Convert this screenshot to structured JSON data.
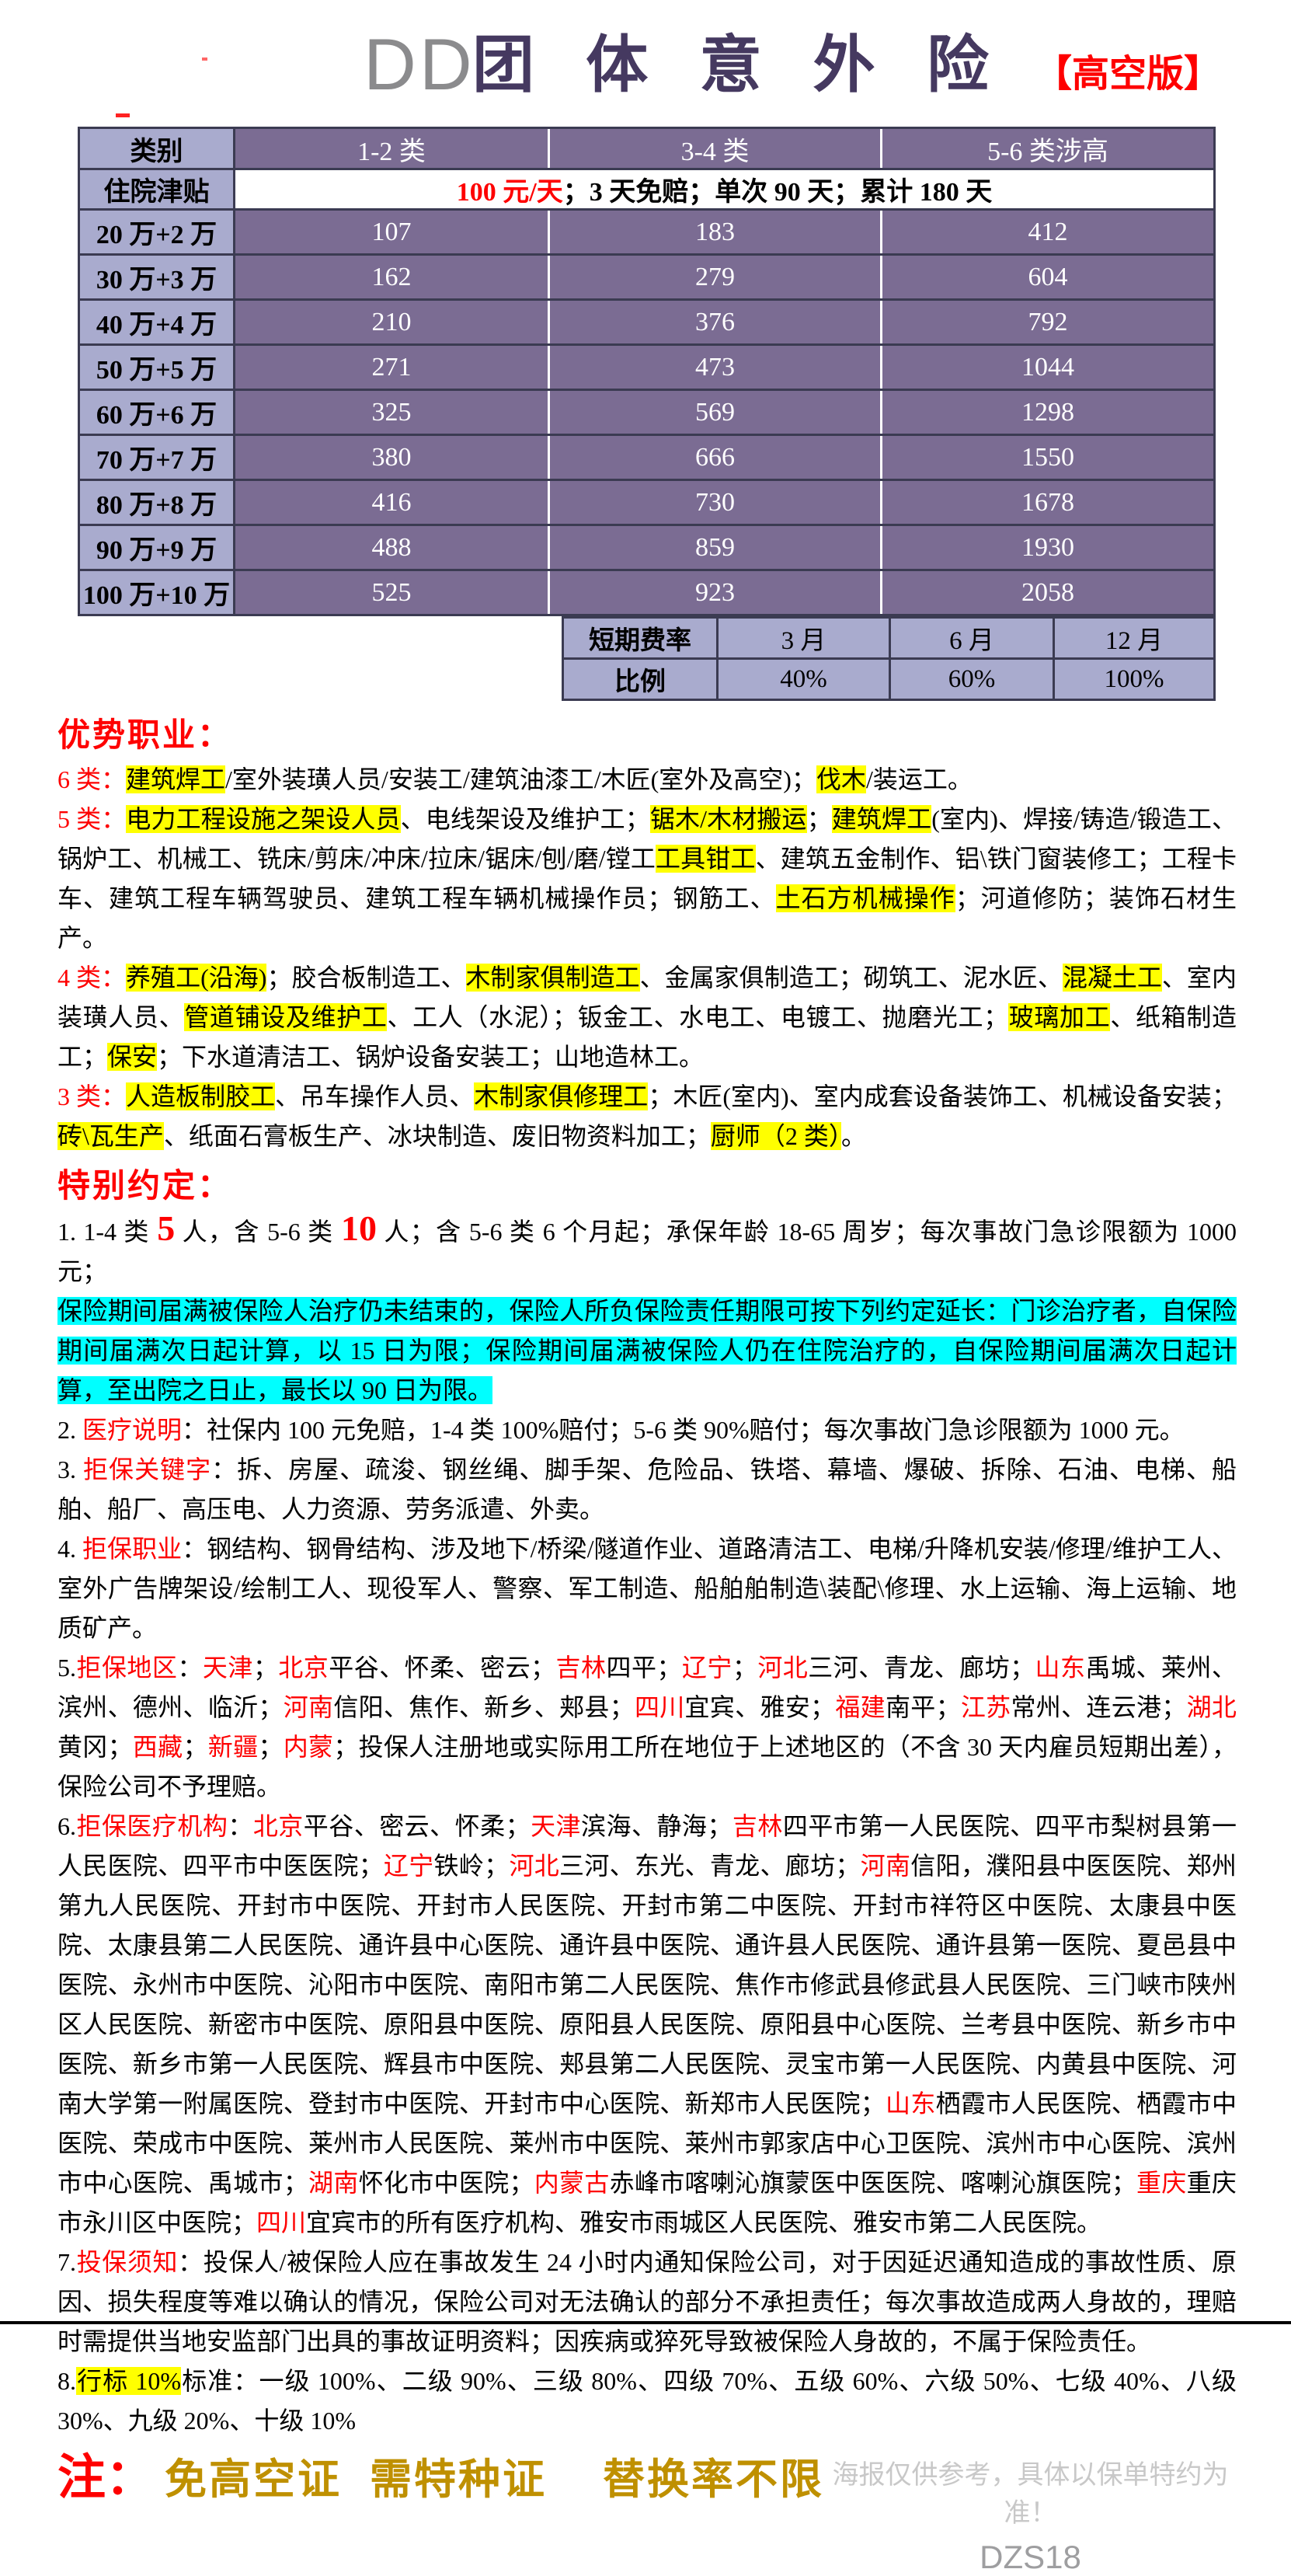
{
  "header": {
    "brand": "DD",
    "title": "团 体 意 外 险",
    "badge": "【高空版】"
  },
  "rate_table": {
    "columns": [
      "类别",
      "1-2 类",
      "3-4 类",
      "5-6 类涉高"
    ],
    "allowance_label": "住院津贴",
    "allowance_red": "100 元/天",
    "allowance_rest": "；3 天免赔；单次 90 天；累计 180 天",
    "rows": [
      {
        "label": "20 万+2 万",
        "values": [
          "107",
          "183",
          "412"
        ]
      },
      {
        "label": "30 万+3 万",
        "values": [
          "162",
          "279",
          "604"
        ]
      },
      {
        "label": "40 万+4 万",
        "values": [
          "210",
          "376",
          "792"
        ]
      },
      {
        "label": "50 万+5 万",
        "values": [
          "271",
          "473",
          "1044"
        ]
      },
      {
        "label": "60 万+6 万",
        "values": [
          "325",
          "569",
          "1298"
        ]
      },
      {
        "label": "70 万+7 万",
        "values": [
          "380",
          "666",
          "1550"
        ]
      },
      {
        "label": "80 万+8 万",
        "values": [
          "416",
          "730",
          "1678"
        ]
      },
      {
        "label": "90 万+9 万",
        "values": [
          "488",
          "859",
          "1930"
        ]
      },
      {
        "label": "100 万+10 万",
        "values": [
          "525",
          "923",
          "2058"
        ]
      }
    ],
    "short_rate_label": "短期费率",
    "short_rate_months": [
      "3 月",
      "6 月",
      "12 月"
    ],
    "ratio_label": "比例",
    "ratios": [
      "40%",
      "60%",
      "100%"
    ]
  },
  "advantage": {
    "heading": "优势职业：",
    "c6_label": "6 类：",
    "c6": [
      "建筑焊工",
      "/室外装璜人员/安装工/建筑油漆工/木匠(室外及高空)；",
      "伐木",
      "/装运工。"
    ],
    "c5_label": "5 类：",
    "c5": [
      "电力工程设施之架设人员",
      "、电线架设及维护工；",
      "锯木/木材搬运",
      "；",
      "建筑焊工",
      "(室内)、焊接/铸造/锻造工、锅炉工、机械工、铣床/剪床/冲床/拉床/锯床/刨/磨/镗工",
      "工具钳工",
      "、建筑五金制作、铝\\铁门窗装修工；工程卡车、建筑工程车辆驾驶员、建筑工程车辆机械操作员；钢筋工、",
      "土石方机械操作",
      "；河道修防；装饰石材生产。"
    ],
    "c4_label": "4 类：",
    "c4": [
      "养殖工(沿海)",
      "；胶合板制造工、",
      "木制家俱制造工",
      "、金属家俱制造工；砌筑工、泥水匠、",
      "混凝土工",
      "、室内装璜人员、",
      "管道铺设及维护工",
      "、工人（水泥）；钣金工、水电工、电镀工、抛磨光工；",
      "玻璃加工",
      "、纸箱制造工；",
      "保安",
      "；下水道清洁工、锅炉设备安装工；山地造林工。"
    ],
    "c3_label": "3 类：",
    "c3": [
      "人造板制胶工",
      "、吊车操作人员、",
      "木制家俱修理工",
      "；木匠(室内)、室内成套设备装饰工、机械设备安装；",
      "砖\\瓦生产",
      "、纸面石膏板生产、冰块制造、废旧物资料加工；",
      "厨师（2 类）",
      "。"
    ]
  },
  "special": {
    "heading": "特别约定：",
    "i1_label": "1.  1-4 类 ",
    "i1": [
      "5",
      " 人，含 5-6 类 ",
      "10",
      " 人；含 5-6 类 6 个月起；承保年龄 18-65 周岁；每次事故门急诊限额为 1000 元；"
    ],
    "i1_note": "保险期间届满被保险人治疗仍未结束的，保险人所负保险责任期限可按下列约定延长：门诊治疗者，自保险期间届满次日起计算，以 15 日为限；保险期间届满被保险人仍在住院治疗的，自保险期间届满次日起计算，至出院之日止，最长以 90 日为限。",
    "i2_num": "2.  ",
    "i2_label": "医疗说明",
    "i2_text": "：社保内 100 元免赔，1-4 类 100%赔付；5-6 类 90%赔付；每次事故门急诊限额为 1000 元。",
    "i3_num": "3.  ",
    "i3_label": "拒保关键字",
    "i3_text": "：拆、房屋、疏浚、钢丝绳、脚手架、危险品、铁塔、幕墙、爆破、拆除、石油、电梯、船舶、船厂、高压电、人力资源、劳务派遣、外卖。",
    "i4_num": "4.  ",
    "i4_label": "拒保职业",
    "i4_text": "：钢结构、钢骨结构、涉及地下/桥梁/隧道作业、道路清洁工、电梯/升降机安装/修理/维护工人、室外广告牌架设/绘制工人、现役军人、警察、军工制造、船舶舶制造\\装配\\修理、水上运输、海上运输、地质矿产。",
    "i5": [
      "5.",
      "拒保地区",
      "：",
      "天津",
      "；",
      "北京",
      "平谷、怀柔、密云；",
      "吉林",
      "四平；",
      "辽宁",
      "；",
      "河北",
      "三河、青龙、廊坊；",
      "山东",
      "禹城、莱州、滨州、德州、临沂；",
      "河南",
      "信阳、焦作、新乡、郏县；",
      "四川",
      "宜宾、雅安；",
      "福建",
      "南平；",
      "江苏",
      "常州、连云港；",
      "湖北",
      "黄冈；",
      "西藏",
      "；",
      "新疆",
      "；",
      "内蒙",
      "；投保人注册地或实际用工所在地位于上述地区的（不含 30 天内雇员短期出差），保险公司不予理赔。"
    ],
    "i6": [
      "6.",
      "拒保医疗机构",
      "：",
      "北京",
      "平谷、密云、怀柔；",
      "天津",
      "滨海、静海；",
      "吉林",
      "四平市第一人民医院、四平市梨树县第一人民医院、四平市中医医院；",
      "辽宁",
      "铁岭；",
      "河北",
      "三河、东光、青龙、廊坊；",
      "河南",
      "信阳，濮阳县中医医院、郑州第九人民医院、开封市中医院、开封市人民医院、开封市第二中医院、开封市祥符区中医院、太康县中医院、太康县第二人民医院、通许县中心医院、通许县中医院、通许县人民医院、通许县第一医院、夏邑县中医院、永州市中医院、沁阳市中医院、南阳市第二人民医院、焦作市修武县修武县人民医院、三门峡市陕州区人民医院、新密市中医院、原阳县中医院、原阳县人民医院、原阳县中心医院、兰考县中医院、新乡市中医院、新乡市第一人民医院、辉县市中医院、郏县第二人民医院、灵宝市第一人民医院、内黄县中医院、河南大学第一附属医院、登封市中医院、开封市中心医院、新郑市人民医院；",
      "山东",
      "栖霞市人民医院、栖霞市中医院、荣成市中医院、莱州市人民医院、莱州市中医院、莱州市郭家店中心卫医院、滨州市中心医院、滨州市中心医院、禹城市；",
      "湖南",
      "怀化市中医院；",
      "内蒙古",
      "赤峰市喀喇沁旗蒙医中医医院、喀喇沁旗医院；",
      "重庆",
      "重庆市永川区中医院；",
      "四川",
      "宜宾市的所有医疗机构、雅安市雨城区人民医院、雅安市第二人民医院。"
    ],
    "i7_num": "7.",
    "i7_label": "投保须知",
    "i7_text": "：投保人/被保险人应在事故发生 24 小时内通知保险公司，对于因延迟通知造成的事故性质、原因、损失程度等难以确认的情况，保险公司对无法确认的部分不承担责任；每次事故造成两人身故的，理赔时需提供当地安监部门出具的事故证明资料；因疾病或猝死导致被保险人身故的，不属于保险责任。",
    "i8_num": "8.",
    "i8_hl": "行标 10%",
    "i8_text": "标准：一级 100%、二级 90%、三级 80%、四级 70%、五级 60%、六级 50%、七级 40%、八级 30%、九级 20%、十级 10%"
  },
  "footer": {
    "note_label": "注：",
    "note_text": "免高空证  需特种证    替换率不限",
    "disclaimer": "海报仅供参考，具体以保单特约为准！",
    "code": "DZS18"
  },
  "colors": {
    "cell_purple": "#7b6c93",
    "cell_lavender": "#a9abce",
    "title_purple": "#453960",
    "accent_red": "#fe0000",
    "highlight_yellow": "#ffff00",
    "highlight_cyan": "#00ffff",
    "note_gold": "#bf9000"
  }
}
